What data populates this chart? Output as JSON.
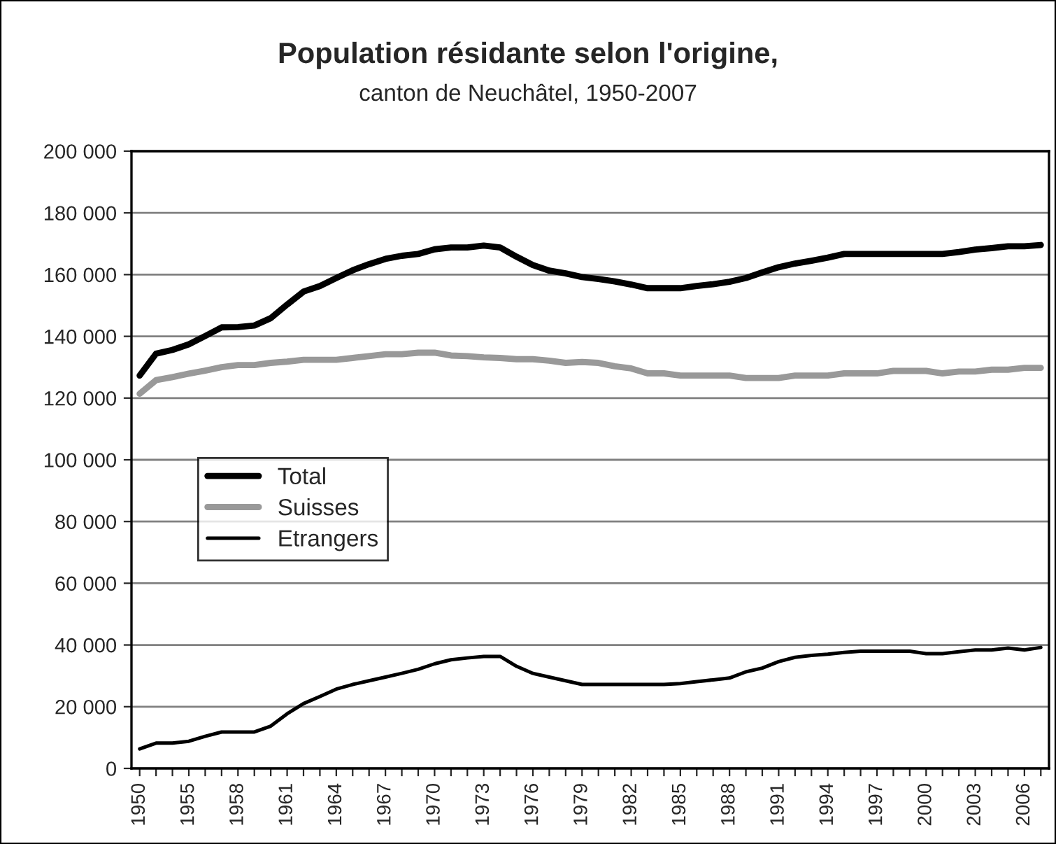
{
  "chart_data": {
    "type": "line",
    "title": "Population résidante selon l'origine,",
    "subtitle": "canton de Neuchâtel, 1950-2007",
    "categories": [
      "1950",
      null,
      null,
      "1955",
      null,
      null,
      "1958",
      null,
      null,
      "1961",
      null,
      null,
      "1964",
      null,
      null,
      "1967",
      null,
      null,
      "1970",
      null,
      null,
      "1973",
      null,
      null,
      "1976",
      null,
      null,
      "1979",
      null,
      null,
      "1982",
      null,
      null,
      "1985",
      null,
      null,
      "1988",
      null,
      null,
      "1991",
      null,
      null,
      "1994",
      null,
      null,
      "1997",
      null,
      null,
      "2000",
      null,
      null,
      "2003",
      null,
      null,
      "2006",
      null
    ],
    "series": [
      {
        "name": "Total",
        "color": "#000000",
        "values": [
          127300,
          134400,
          135600,
          137400,
          140100,
          142900,
          143000,
          143500,
          145900,
          150300,
          154500,
          156300,
          158900,
          161400,
          163400,
          165100,
          166100,
          166700,
          168200,
          168800,
          168800,
          169400,
          168800,
          165800,
          163100,
          161300,
          160400,
          159200,
          158600,
          157800,
          156800,
          155600,
          155600,
          155600,
          156300,
          156900,
          157700,
          158900,
          160700,
          162400,
          163600,
          164500,
          165500,
          166700,
          166700,
          166700,
          166700,
          166700,
          166700,
          166700,
          167300,
          168100,
          168600,
          169200,
          169200,
          169600
        ]
      },
      {
        "name": "Suisses",
        "color": "#999999",
        "values": [
          121400,
          125800,
          126800,
          127900,
          128900,
          130000,
          130700,
          130700,
          131400,
          131800,
          132400,
          132400,
          132400,
          133000,
          133600,
          134200,
          134200,
          134700,
          134700,
          133800,
          133600,
          133200,
          133000,
          132600,
          132600,
          132100,
          131400,
          131700,
          131400,
          130300,
          129600,
          128000,
          128000,
          127300,
          127300,
          127300,
          127300,
          126500,
          126500,
          126500,
          127300,
          127300,
          127300,
          128000,
          128000,
          128000,
          128800,
          128800,
          128800,
          128000,
          128600,
          128600,
          129200,
          129200,
          129800,
          129800
        ]
      },
      {
        "name": "Etrangers",
        "color": "#000000",
        "values": [
          6300,
          8200,
          8200,
          8800,
          10400,
          11800,
          11800,
          11800,
          13700,
          17700,
          21000,
          23300,
          25700,
          27200,
          28400,
          29600,
          30800,
          32100,
          33900,
          35200,
          35800,
          36300,
          36300,
          33100,
          30800,
          29600,
          28400,
          27200,
          27200,
          27200,
          27200,
          27200,
          27200,
          27500,
          28100,
          28700,
          29300,
          31300,
          32500,
          34600,
          36000,
          36600,
          37000,
          37600,
          38000,
          38000,
          38000,
          38000,
          37200,
          37200,
          37800,
          38400,
          38400,
          39000,
          38400,
          39200
        ]
      }
    ],
    "ylim": [
      0,
      200000
    ],
    "yticks": [
      {
        "value": 0,
        "label": "0"
      },
      {
        "value": 20000,
        "label": "20 000"
      },
      {
        "value": 40000,
        "label": "40 000"
      },
      {
        "value": 60000,
        "label": "60 000"
      },
      {
        "value": 80000,
        "label": "80 000"
      },
      {
        "value": 100000,
        "label": "100 000"
      },
      {
        "value": 120000,
        "label": "120 000"
      },
      {
        "value": 140000,
        "label": "140 000"
      },
      {
        "value": 160000,
        "label": "160 000"
      },
      {
        "value": 180000,
        "label": "180 000"
      },
      {
        "value": 200000,
        "label": "200 000"
      }
    ],
    "grid": "y",
    "legend": "left",
    "marker": "none",
    "line_style": "solid"
  }
}
